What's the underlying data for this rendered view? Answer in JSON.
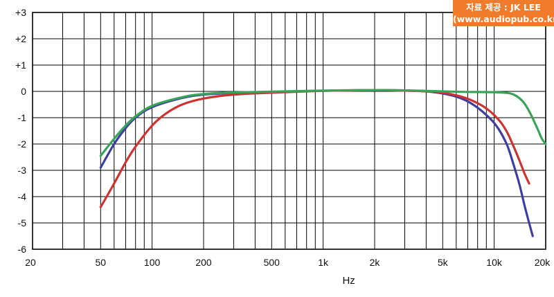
{
  "credit": {
    "line1": "자료 제공 : JK LEE",
    "line2": "(www.audiopub.co.kr)",
    "background": "#f07b2a"
  },
  "chart_data": {
    "type": "line",
    "title": "",
    "xlabel": "Hz",
    "ylabel": "",
    "x_scale": "log",
    "xlim": [
      20,
      20000
    ],
    "ylim": [
      -6,
      3
    ],
    "grid": true,
    "x_ticks": [
      {
        "value": 20,
        "label": "20"
      },
      {
        "value": 50,
        "label": "50"
      },
      {
        "value": 100,
        "label": "100"
      },
      {
        "value": 200,
        "label": "200"
      },
      {
        "value": 500,
        "label": "500"
      },
      {
        "value": 1000,
        "label": "1k"
      },
      {
        "value": 2000,
        "label": "2k"
      },
      {
        "value": 5000,
        "label": "5k"
      },
      {
        "value": 10000,
        "label": "10k"
      },
      {
        "value": 20000,
        "label": "20k"
      }
    ],
    "y_ticks": [
      {
        "value": 3,
        "label": "+3"
      },
      {
        "value": 2,
        "label": "+2"
      },
      {
        "value": 1,
        "label": "+1"
      },
      {
        "value": 0,
        "label": "0"
      },
      {
        "value": -1,
        "label": "-1"
      },
      {
        "value": -2,
        "label": "-2"
      },
      {
        "value": -3,
        "label": "-3"
      },
      {
        "value": -4,
        "label": "-4"
      },
      {
        "value": -5,
        "label": "-5"
      },
      {
        "value": -6,
        "label": "-6"
      }
    ],
    "series": [
      {
        "color": "#3e3e9c",
        "points": [
          [
            50,
            -2.9
          ],
          [
            60,
            -2.0
          ],
          [
            70,
            -1.4
          ],
          [
            80,
            -1.0
          ],
          [
            100,
            -0.6
          ],
          [
            150,
            -0.25
          ],
          [
            200,
            -0.12
          ],
          [
            300,
            -0.06
          ],
          [
            500,
            -0.03
          ],
          [
            1000,
            0.02
          ],
          [
            2000,
            0.05
          ],
          [
            3000,
            0.03
          ],
          [
            4000,
            0.0
          ],
          [
            5000,
            -0.08
          ],
          [
            6000,
            -0.2
          ],
          [
            7000,
            -0.38
          ],
          [
            8000,
            -0.62
          ],
          [
            9000,
            -0.9
          ],
          [
            10000,
            -1.2
          ],
          [
            11000,
            -1.6
          ],
          [
            12000,
            -2.1
          ],
          [
            13000,
            -2.8
          ],
          [
            14000,
            -3.5
          ],
          [
            15000,
            -4.3
          ],
          [
            16000,
            -5.0
          ],
          [
            16800,
            -5.5
          ]
        ]
      },
      {
        "color": "#cc3333",
        "points": [
          [
            50,
            -4.4
          ],
          [
            60,
            -3.5
          ],
          [
            70,
            -2.7
          ],
          [
            80,
            -2.1
          ],
          [
            100,
            -1.3
          ],
          [
            120,
            -0.85
          ],
          [
            150,
            -0.5
          ],
          [
            200,
            -0.27
          ],
          [
            300,
            -0.12
          ],
          [
            500,
            -0.05
          ],
          [
            1000,
            0.02
          ],
          [
            2000,
            0.05
          ],
          [
            3000,
            0.03
          ],
          [
            4000,
            0.0
          ],
          [
            5000,
            -0.05
          ],
          [
            6000,
            -0.15
          ],
          [
            7000,
            -0.28
          ],
          [
            8000,
            -0.45
          ],
          [
            9000,
            -0.65
          ],
          [
            10000,
            -0.9
          ],
          [
            11000,
            -1.2
          ],
          [
            12000,
            -1.6
          ],
          [
            13000,
            -2.1
          ],
          [
            14000,
            -2.6
          ],
          [
            15000,
            -3.1
          ],
          [
            16000,
            -3.5
          ]
        ]
      },
      {
        "color": "#3aa35a",
        "points": [
          [
            50,
            -2.45
          ],
          [
            60,
            -1.8
          ],
          [
            70,
            -1.3
          ],
          [
            80,
            -0.95
          ],
          [
            100,
            -0.55
          ],
          [
            150,
            -0.22
          ],
          [
            200,
            -0.1
          ],
          [
            300,
            -0.04
          ],
          [
            500,
            -0.01
          ],
          [
            1000,
            0.03
          ],
          [
            2000,
            0.05
          ],
          [
            3000,
            0.04
          ],
          [
            5000,
            0.0
          ],
          [
            7000,
            -0.02
          ],
          [
            10000,
            -0.03
          ],
          [
            12000,
            -0.06
          ],
          [
            13000,
            -0.12
          ],
          [
            14000,
            -0.25
          ],
          [
            15000,
            -0.45
          ],
          [
            16000,
            -0.75
          ],
          [
            17000,
            -1.1
          ],
          [
            18000,
            -1.45
          ],
          [
            19000,
            -1.8
          ],
          [
            20000,
            -2.0
          ]
        ]
      }
    ]
  }
}
